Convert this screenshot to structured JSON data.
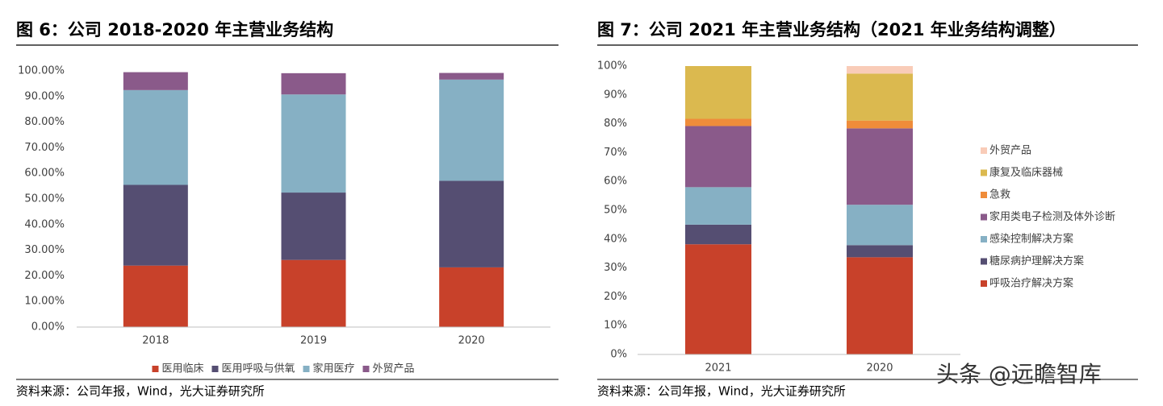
{
  "chart_data": [
    {
      "type": "stacked_bar",
      "title": "图 6：公司 2018-2020 年主营业务结构",
      "categories": [
        "2018",
        "2019",
        "2020"
      ],
      "series": [
        {
          "name": "医用临床",
          "color": "#c8412a",
          "values": [
            24,
            26.2,
            23.3
          ]
        },
        {
          "name": "医用呼吸与供氧",
          "color": "#554e72",
          "values": [
            31.5,
            26.3,
            33.8
          ]
        },
        {
          "name": "家用医疗",
          "color": "#86b0c4",
          "values": [
            37,
            38.3,
            39.5
          ]
        },
        {
          "name": "外贸产品",
          "color": "#8a5a8a",
          "values": [
            7,
            8.3,
            2.6
          ]
        }
      ],
      "ylim": [
        0,
        100
      ],
      "yticks": [
        {
          "value": 0,
          "label": "0.00%"
        },
        {
          "value": 10,
          "label": "10.00%"
        },
        {
          "value": 20,
          "label": "20.00%"
        },
        {
          "value": 30,
          "label": "30.00%"
        },
        {
          "value": 40,
          "label": "40.00%"
        },
        {
          "value": 50,
          "label": "50.00%"
        },
        {
          "value": 60,
          "label": "60.00%"
        },
        {
          "value": 70,
          "label": "70.00%"
        },
        {
          "value": 80,
          "label": "80.00%"
        },
        {
          "value": 90,
          "label": "90.00%"
        },
        {
          "value": 100,
          "label": "100.00%"
        }
      ],
      "grid": false,
      "legend": "bottom",
      "source": "资料来源：公司年报，Wind，光大证券研究所"
    },
    {
      "type": "stacked_bar",
      "title": "图 7：公司 2021 年主营业务结构（2021 年业务结构调整）",
      "categories": [
        "2021",
        "2020"
      ],
      "series": [
        {
          "name": "呼吸治疗解决方案",
          "color": "#c8412a",
          "values": [
            38.2,
            33.7
          ]
        },
        {
          "name": "糖尿病护理解决方案",
          "color": "#554e72",
          "values": [
            6.8,
            4.2
          ]
        },
        {
          "name": "感染控制解决方案",
          "color": "#86b0c4",
          "values": [
            13,
            14
          ]
        },
        {
          "name": "家用类电子检测及体外诊断",
          "color": "#8a5a8a",
          "values": [
            21.2,
            26.5
          ]
        },
        {
          "name": "急救",
          "color": "#ef8c3a",
          "values": [
            2.5,
            2.7
          ]
        },
        {
          "name": "康复及临床器械",
          "color": "#dbb94f",
          "values": [
            18.3,
            16.3
          ]
        },
        {
          "name": "外贸产品",
          "color": "#f9ccb8",
          "values": [
            0,
            2.6
          ]
        }
      ],
      "ylim": [
        0,
        100
      ],
      "yticks": [
        {
          "value": 0,
          "label": "0%"
        },
        {
          "value": 10,
          "label": "10%"
        },
        {
          "value": 20,
          "label": "20%"
        },
        {
          "value": 30,
          "label": "30%"
        },
        {
          "value": 40,
          "label": "40%"
        },
        {
          "value": 50,
          "label": "50%"
        },
        {
          "value": 60,
          "label": "60%"
        },
        {
          "value": 70,
          "label": "70%"
        },
        {
          "value": 80,
          "label": "80%"
        },
        {
          "value": 90,
          "label": "90%"
        },
        {
          "value": 100,
          "label": "100%"
        }
      ],
      "grid": false,
      "legend": "right",
      "source": "资料来源：公司年报，Wind，光大证券研究所"
    }
  ],
  "watermark": "头条 @远瞻智库"
}
